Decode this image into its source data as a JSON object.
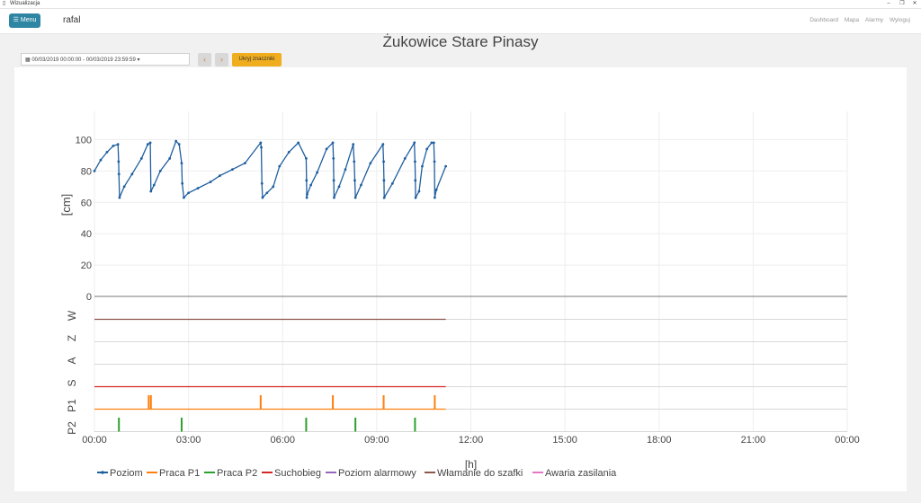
{
  "window": {
    "title": "Wizualizacja"
  },
  "navbar": {
    "menu_label": "Menu",
    "brand": "rafal",
    "links": [
      "Dashboard",
      "Mapa",
      "Alarmy",
      "Wyloguj"
    ]
  },
  "page_title": "Żukowice Stare Pinasy",
  "toolbar": {
    "date_range": "00/03/2019 00:00:00 - 00/03/2019 23:59:59",
    "prev_icon": "chevron-left",
    "next_icon": "chevron-right",
    "hide_markers_label": "Ukryj znaczniki"
  },
  "chart_data": {
    "type": "line",
    "xlabel": "[h]",
    "ylabel": "[cm]",
    "x_ticks": [
      "00:00",
      "03:00",
      "06:00",
      "09:00",
      "12:00",
      "15:00",
      "18:00",
      "21:00",
      "00:00"
    ],
    "xlim_hours": [
      0,
      24
    ],
    "ylim": [
      0,
      118
    ],
    "y_ticks": [
      0,
      20,
      40,
      60,
      80,
      100
    ],
    "grid": true,
    "legend_position": "bottom",
    "level_series": {
      "name": "Poziom",
      "color": "#1f5fa0",
      "x_hours": [
        0,
        0.2,
        0.4,
        0.6,
        0.75,
        0.77,
        0.78,
        0.8,
        0.95,
        1.2,
        1.5,
        1.7,
        1.78,
        1.8,
        1.9,
        2.1,
        2.4,
        2.6,
        2.7,
        2.78,
        2.8,
        2.85,
        3.0,
        3.3,
        3.7,
        4.0,
        4.4,
        4.8,
        5.3,
        5.32,
        5.34,
        5.36,
        5.5,
        5.7,
        5.9,
        6.2,
        6.5,
        6.75,
        6.76,
        6.77,
        6.78,
        6.9,
        7.1,
        7.4,
        7.6,
        7.62,
        7.63,
        7.64,
        7.8,
        8.0,
        8.25,
        8.28,
        8.3,
        8.32,
        8.5,
        8.8,
        9.2,
        9.22,
        9.23,
        9.24,
        9.5,
        9.9,
        10.2,
        10.22,
        10.23,
        10.24,
        10.35,
        10.45,
        10.6,
        10.75,
        10.82,
        10.84,
        10.85,
        10.9,
        11.2
      ],
      "y_cm": [
        80,
        87,
        92,
        96,
        97,
        86,
        78,
        63,
        70,
        78,
        88,
        97,
        98,
        67,
        71,
        80,
        88,
        99,
        97,
        85,
        72,
        63,
        66,
        69,
        73,
        77,
        81,
        85,
        98,
        95,
        72,
        63,
        66,
        70,
        83,
        92,
        98,
        88,
        74,
        63,
        65,
        71,
        79,
        94,
        98,
        88,
        74,
        63,
        70,
        81,
        97,
        86,
        74,
        63,
        71,
        85,
        97,
        86,
        74,
        63,
        72,
        88,
        98,
        86,
        74,
        63,
        67,
        83,
        94,
        98,
        98,
        86,
        63,
        68,
        83
      ]
    },
    "binary_tracks": [
      {
        "label": "W",
        "color": "#8c564b",
        "active_until_hours": 11.2,
        "pulses_hours": []
      },
      {
        "label": "Z",
        "color": "#d62728",
        "active_until_hours": 0,
        "pulses_hours": []
      },
      {
        "label": "A",
        "color": "#9467bd",
        "active_until_hours": 0,
        "pulses_hours": []
      },
      {
        "label": "S",
        "color": "#d62728",
        "active_until_hours": 11.2,
        "pulses_hours": []
      },
      {
        "label": "P1",
        "color": "#ff7f0e",
        "active_until_hours": 11.2,
        "pulses_hours": [
          1.73,
          1.8,
          5.3,
          7.6,
          9.22,
          10.85
        ]
      },
      {
        "label": "P2",
        "color": "#2ca02c",
        "active_until_hours": 0,
        "pulses_hours": [
          0.78,
          2.78,
          6.75,
          8.32,
          10.22
        ]
      }
    ],
    "legend": [
      {
        "name": "Poziom",
        "color": "#1f5fa0",
        "marker": true
      },
      {
        "name": "Praca P1",
        "color": "#ff7f0e"
      },
      {
        "name": "Praca P2",
        "color": "#2ca02c"
      },
      {
        "name": "Suchobieg",
        "color": "#d62728"
      },
      {
        "name": "Poziom alarmowy",
        "color": "#9467bd"
      },
      {
        "name": "Włamanie do szafki",
        "color": "#8c564b"
      },
      {
        "name": "Awaria zasilania",
        "color": "#e377c2"
      }
    ]
  }
}
